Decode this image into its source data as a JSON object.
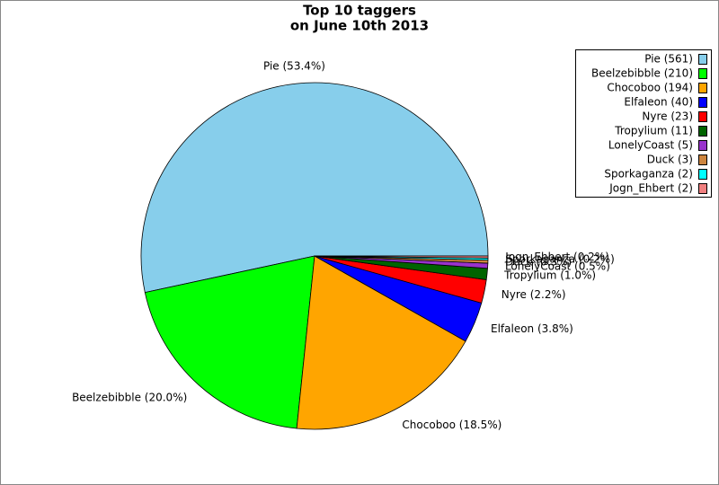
{
  "chart_data": {
    "type": "pie",
    "title": "Top 10 taggers",
    "subtitle": "on June 10th 2013",
    "values": [
      561,
      210,
      194,
      40,
      23,
      11,
      5,
      3,
      2,
      2
    ],
    "colors": [
      "#87ceeb",
      "#00ff00",
      "#ffa500",
      "#0000ff",
      "#ff0000",
      "#006400",
      "#9932cc",
      "#cd853f",
      "#00ffff",
      "#f08080"
    ],
    "slice_labels": [
      "Pie (53.4%)",
      "Beelzebibble (20.0%)",
      "Chocoboo (18.5%)",
      "Elfaleon (3.8%)",
      "Nyre (2.2%)",
      "Tropylium (1.0%)",
      "LonelyCoast (0.5%)",
      "Duck (0.3%)",
      "Sporkaganza (0.2%)",
      "Jogn_Ehbert (0.2%)"
    ],
    "legend_labels": [
      "Pie (561)",
      "Beelzebibble (210)",
      "Chocoboo (194)",
      "Elfaleon (40)",
      "Nyre (23)",
      "Tropylium (11)",
      "LonelyCoast (5)",
      "Duck (3)",
      "Sporkaganza (2)",
      "Jogn_Ehbert (2)"
    ],
    "legend": "upper right"
  }
}
